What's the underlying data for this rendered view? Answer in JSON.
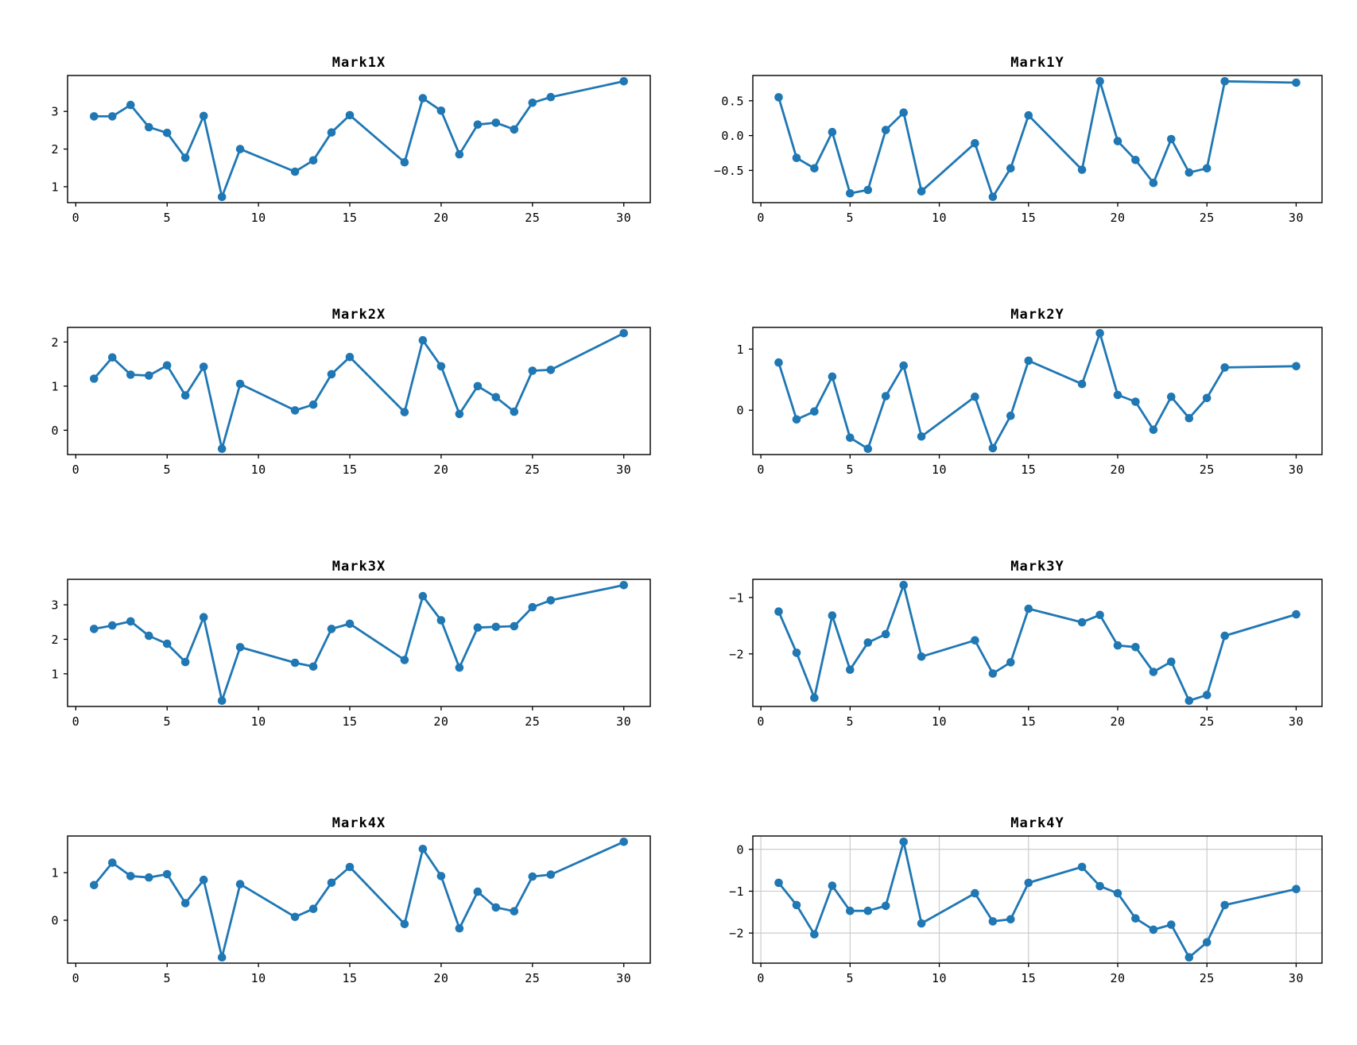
{
  "figure": {
    "background": "#ffffff",
    "line_color": "#1f77b4",
    "marker_color": "#1f77b4",
    "axis_color": "#000000",
    "grid_color": "#cccccc"
  },
  "chart_data": [
    {
      "type": "line",
      "title": "Mark1X",
      "x": [
        1,
        2,
        3,
        4,
        5,
        6,
        7,
        8,
        9,
        12,
        13,
        14,
        15,
        18,
        19,
        20,
        21,
        22,
        23,
        24,
        25,
        26,
        30
      ],
      "y": [
        2.87,
        2.87,
        3.17,
        2.58,
        2.43,
        1.77,
        2.88,
        0.73,
        2.0,
        1.4,
        1.7,
        2.44,
        2.9,
        1.65,
        3.35,
        3.02,
        1.86,
        2.65,
        2.7,
        2.52,
        3.23,
        3.38,
        3.8
      ],
      "xlim": [
        -0.45,
        31.45
      ],
      "ylim": [
        0.577,
        3.954
      ],
      "xticks": [
        0,
        5,
        10,
        15,
        20,
        25,
        30
      ],
      "xtick_labels": [
        "0",
        "5",
        "10",
        "15",
        "20",
        "25",
        "30"
      ],
      "yticks": [
        1,
        2,
        3
      ],
      "ytick_labels": [
        "1",
        "2",
        "3"
      ],
      "grid": false
    },
    {
      "type": "line",
      "title": "Mark1Y",
      "x": [
        1,
        2,
        3,
        4,
        5,
        6,
        7,
        8,
        9,
        12,
        13,
        14,
        15,
        18,
        19,
        20,
        21,
        22,
        23,
        24,
        25,
        26,
        30
      ],
      "y": [
        0.55,
        -0.32,
        -0.47,
        0.05,
        -0.83,
        -0.78,
        0.08,
        0.33,
        -0.8,
        -0.11,
        -0.88,
        -0.47,
        0.29,
        -0.49,
        0.78,
        -0.08,
        -0.35,
        -0.68,
        -0.05,
        -0.53,
        -0.47,
        0.78,
        0.76
      ],
      "xlim": [
        -0.45,
        31.45
      ],
      "ylim": [
        -0.963,
        0.863
      ],
      "xticks": [
        0,
        5,
        10,
        15,
        20,
        25,
        30
      ],
      "xtick_labels": [
        "0",
        "5",
        "10",
        "15",
        "20",
        "25",
        "30"
      ],
      "yticks": [
        0.5,
        0.0,
        -0.5
      ],
      "ytick_labels": [
        "0.5",
        "0.0",
        "−0.5"
      ],
      "grid": false
    },
    {
      "type": "line",
      "title": "Mark2X",
      "x": [
        1,
        2,
        3,
        4,
        5,
        6,
        7,
        8,
        9,
        12,
        13,
        14,
        15,
        18,
        19,
        20,
        21,
        22,
        23,
        24,
        25,
        26,
        30
      ],
      "y": [
        1.17,
        1.65,
        1.26,
        1.24,
        1.47,
        0.79,
        1.44,
        -0.42,
        1.05,
        0.45,
        0.58,
        1.27,
        1.66,
        0.41,
        2.04,
        1.45,
        0.37,
        1.0,
        0.75,
        0.42,
        1.35,
        1.37,
        2.2
      ],
      "xlim": [
        -0.45,
        31.45
      ],
      "ylim": [
        -0.551,
        2.331
      ],
      "xticks": [
        0,
        5,
        10,
        15,
        20,
        25,
        30
      ],
      "xtick_labels": [
        "0",
        "5",
        "10",
        "15",
        "20",
        "25",
        "30"
      ],
      "yticks": [
        0,
        1,
        2
      ],
      "ytick_labels": [
        "0",
        "1",
        "2"
      ],
      "grid": false
    },
    {
      "type": "line",
      "title": "Mark2Y",
      "x": [
        1,
        2,
        3,
        4,
        5,
        6,
        7,
        8,
        9,
        12,
        13,
        14,
        15,
        18,
        19,
        20,
        21,
        22,
        23,
        24,
        25,
        26,
        30
      ],
      "y": [
        0.78,
        -0.15,
        -0.02,
        0.55,
        -0.45,
        -0.63,
        0.23,
        0.73,
        -0.43,
        0.22,
        -0.62,
        -0.09,
        0.81,
        0.43,
        1.26,
        0.25,
        0.14,
        -0.32,
        0.22,
        -0.13,
        0.2,
        0.7,
        0.72
      ],
      "xlim": [
        -0.45,
        31.45
      ],
      "ylim": [
        -0.725,
        1.355
      ],
      "xticks": [
        0,
        5,
        10,
        15,
        20,
        25,
        30
      ],
      "xtick_labels": [
        "0",
        "5",
        "10",
        "15",
        "20",
        "25",
        "30"
      ],
      "yticks": [
        0,
        1
      ],
      "ytick_labels": [
        "0",
        "1"
      ],
      "grid": false
    },
    {
      "type": "line",
      "title": "Mark3X",
      "x": [
        1,
        2,
        3,
        4,
        5,
        6,
        7,
        8,
        9,
        12,
        13,
        14,
        15,
        18,
        19,
        20,
        21,
        22,
        23,
        24,
        25,
        26,
        30
      ],
      "y": [
        2.3,
        2.4,
        2.52,
        2.1,
        1.87,
        1.34,
        2.64,
        0.22,
        1.77,
        1.32,
        1.21,
        2.3,
        2.45,
        1.4,
        3.25,
        2.55,
        1.18,
        2.34,
        2.36,
        2.38,
        2.93,
        3.13,
        3.57
      ],
      "xlim": [
        -0.45,
        31.45
      ],
      "ylim": [
        0.053,
        3.738
      ],
      "xticks": [
        0,
        5,
        10,
        15,
        20,
        25,
        30
      ],
      "xtick_labels": [
        "0",
        "5",
        "10",
        "15",
        "20",
        "25",
        "30"
      ],
      "yticks": [
        1,
        2,
        3
      ],
      "ytick_labels": [
        "1",
        "2",
        "3"
      ],
      "grid": false
    },
    {
      "type": "line",
      "title": "Mark3Y",
      "x": [
        1,
        2,
        3,
        4,
        5,
        6,
        7,
        8,
        9,
        12,
        13,
        14,
        15,
        18,
        19,
        20,
        21,
        22,
        23,
        24,
        25,
        26,
        30
      ],
      "y": [
        -1.25,
        -1.98,
        -2.78,
        -1.32,
        -2.28,
        -1.8,
        -1.65,
        -0.78,
        -2.05,
        -1.76,
        -2.35,
        -2.15,
        -1.2,
        -1.44,
        -1.31,
        -1.85,
        -1.88,
        -2.32,
        -2.14,
        -2.83,
        -2.73,
        -1.68,
        -1.3
      ],
      "xlim": [
        -0.45,
        31.45
      ],
      "ylim": [
        -2.933,
        -0.678
      ],
      "xticks": [
        0,
        5,
        10,
        15,
        20,
        25,
        30
      ],
      "xtick_labels": [
        "0",
        "5",
        "10",
        "15",
        "20",
        "25",
        "30"
      ],
      "yticks": [
        -1,
        -2
      ],
      "ytick_labels": [
        "−1",
        "−2"
      ],
      "grid": false
    },
    {
      "type": "line",
      "title": "Mark4X",
      "x": [
        1,
        2,
        3,
        4,
        5,
        6,
        7,
        8,
        9,
        12,
        13,
        14,
        15,
        18,
        19,
        20,
        21,
        22,
        23,
        24,
        25,
        26,
        30
      ],
      "y": [
        0.74,
        1.21,
        0.93,
        0.9,
        0.97,
        0.36,
        0.85,
        -0.78,
        0.76,
        0.07,
        0.24,
        0.79,
        1.12,
        -0.08,
        1.5,
        0.93,
        -0.17,
        0.6,
        0.27,
        0.19,
        0.92,
        0.96,
        1.65
      ],
      "xlim": [
        -0.45,
        31.45
      ],
      "ylim": [
        -0.902,
        1.772
      ],
      "xticks": [
        0,
        5,
        10,
        15,
        20,
        25,
        30
      ],
      "xtick_labels": [
        "0",
        "5",
        "10",
        "15",
        "20",
        "25",
        "30"
      ],
      "yticks": [
        0,
        1
      ],
      "ytick_labels": [
        "0",
        "1"
      ],
      "grid": false
    },
    {
      "type": "line",
      "title": "Mark4Y",
      "x": [
        1,
        2,
        3,
        4,
        5,
        6,
        7,
        8,
        9,
        12,
        13,
        14,
        15,
        18,
        19,
        20,
        21,
        22,
        23,
        24,
        25,
        26,
        30
      ],
      "y": [
        -0.8,
        -1.33,
        -2.03,
        -0.87,
        -1.47,
        -1.47,
        -1.35,
        0.18,
        -1.77,
        -1.05,
        -1.72,
        -1.67,
        -0.8,
        -0.42,
        -0.88,
        -1.05,
        -1.65,
        -1.92,
        -1.8,
        -2.58,
        -2.22,
        -1.33,
        -0.95
      ],
      "xlim": [
        -0.45,
        31.45
      ],
      "ylim": [
        -2.718,
        0.318
      ],
      "xticks": [
        0,
        5,
        10,
        15,
        20,
        25,
        30
      ],
      "xtick_labels": [
        "0",
        "5",
        "10",
        "15",
        "20",
        "25",
        "30"
      ],
      "yticks": [
        0,
        -1,
        -2
      ],
      "ytick_labels": [
        "0",
        "−1",
        "−2"
      ],
      "grid": true
    }
  ]
}
